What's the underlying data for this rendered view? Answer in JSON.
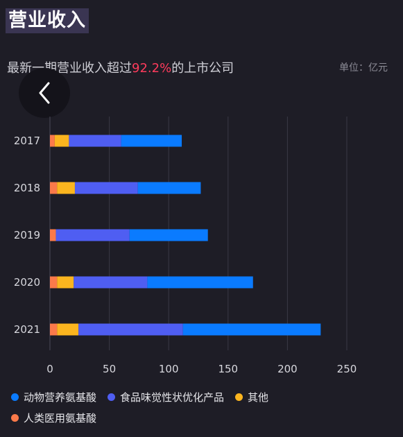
{
  "header": {
    "title": "营业收入",
    "subtitle_prefix": "最新一期营业收入超过",
    "subtitle_highlight": "92.2%",
    "subtitle_suffix": "的上市公司",
    "unit": "单位：亿元"
  },
  "nav": {
    "back_icon": "chevron-left-icon"
  },
  "colors": {
    "background": "#1e1d26",
    "grid": "#3a3946",
    "axis_text": "#d8d8de",
    "highlight": "#ff3b5c"
  },
  "chart_data": {
    "type": "bar",
    "orientation": "horizontal",
    "stacked": true,
    "categories": [
      "2017",
      "2018",
      "2019",
      "2020",
      "2021"
    ],
    "series": [
      {
        "name": "人类医用氨基酸",
        "color": "#fb7a4a",
        "values": [
          4,
          6,
          5,
          6,
          6
        ]
      },
      {
        "name": "其他",
        "color": "#fbb51f",
        "values": [
          12,
          15,
          0,
          14,
          18
        ]
      },
      {
        "name": "食品味觉性状优化产品",
        "color": "#4f5ef2",
        "values": [
          44,
          53,
          62,
          62,
          88
        ]
      },
      {
        "name": "动物营养氨基酸",
        "color": "#0a7bff",
        "values": [
          51,
          53,
          66,
          89,
          116
        ]
      }
    ],
    "xlim": [
      0,
      250
    ],
    "xticks": [
      0,
      50,
      100,
      150,
      200,
      250
    ],
    "grid": true,
    "legend_position": "bottom"
  },
  "legend": {
    "rows": [
      [
        {
          "label": "动物营养氨基酸",
          "color": "#0a7bff"
        },
        {
          "label": "食品味觉性状优化产品",
          "color": "#4f5ef2"
        },
        {
          "label": "其他",
          "color": "#fbb51f"
        }
      ],
      [
        {
          "label": "人类医用氨基酸",
          "color": "#fb7a4a"
        }
      ]
    ]
  }
}
